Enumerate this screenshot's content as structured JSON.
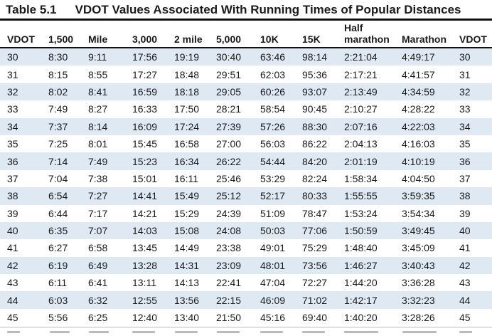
{
  "table": {
    "number": "Table 5.1",
    "title": "VDOT Values Associated With Running Times of Popular Distances",
    "headers": [
      "VDOT",
      "1,500",
      "Mile",
      "3,000",
      "2 mile",
      "5,000",
      "10K",
      "15K",
      "Half marathon",
      "Marathon",
      "VDOT"
    ],
    "rows": [
      [
        "30",
        "8:30",
        "9:11",
        "17:56",
        "19:19",
        "30:40",
        "63:46",
        "98:14",
        "2:21:04",
        "4:49:17",
        "30"
      ],
      [
        "31",
        "8:15",
        "8:55",
        "17:27",
        "18:48",
        "29:51",
        "62:03",
        "95:36",
        "2:17:21",
        "4:41:57",
        "31"
      ],
      [
        "32",
        "8:02",
        "8:41",
        "16:59",
        "18:18",
        "29:05",
        "60:26",
        "93:07",
        "2:13:49",
        "4:34:59",
        "32"
      ],
      [
        "33",
        "7:49",
        "8:27",
        "16:33",
        "17:50",
        "28:21",
        "58:54",
        "90:45",
        "2:10:27",
        "4:28:22",
        "33"
      ],
      [
        "34",
        "7:37",
        "8:14",
        "16:09",
        "17:24",
        "27:39",
        "57:26",
        "88:30",
        "2:07:16",
        "4:22:03",
        "34"
      ],
      [
        "35",
        "7:25",
        "8:01",
        "15:45",
        "16:58",
        "27:00",
        "56:03",
        "86:22",
        "2:04:13",
        "4:16:03",
        "35"
      ],
      [
        "36",
        "7:14",
        "7:49",
        "15:23",
        "16:34",
        "26:22",
        "54:44",
        "84:20",
        "2:01:19",
        "4:10:19",
        "36"
      ],
      [
        "37",
        "7:04",
        "7:38",
        "15:01",
        "16:11",
        "25:46",
        "53:29",
        "82:24",
        "1:58:34",
        "4:04:50",
        "37"
      ],
      [
        "38",
        "6:54",
        "7:27",
        "14:41",
        "15:49",
        "25:12",
        "52:17",
        "80:33",
        "1:55:55",
        "3:59:35",
        "38"
      ],
      [
        "39",
        "6:44",
        "7:17",
        "14:21",
        "15:29",
        "24:39",
        "51:09",
        "78:47",
        "1:53:24",
        "3:54:34",
        "39"
      ],
      [
        "40",
        "6:35",
        "7:07",
        "14:03",
        "15:08",
        "24:08",
        "50:03",
        "77:06",
        "1:50:59",
        "3:49:45",
        "40"
      ],
      [
        "41",
        "6:27",
        "6:58",
        "13:45",
        "14:49",
        "23:38",
        "49:01",
        "75:29",
        "1:48:40",
        "3:45:09",
        "41"
      ],
      [
        "42",
        "6:19",
        "6:49",
        "13:28",
        "14:31",
        "23:09",
        "48:01",
        "73:56",
        "1:46:27",
        "3:40:43",
        "42"
      ],
      [
        "43",
        "6:11",
        "6:41",
        "13:11",
        "14:13",
        "22:41",
        "47:04",
        "72:27",
        "1:44:20",
        "3:36:28",
        "43"
      ],
      [
        "44",
        "6:03",
        "6:32",
        "12:55",
        "13:56",
        "22:15",
        "46:09",
        "71:02",
        "1:42:17",
        "3:32:23",
        "44"
      ],
      [
        "45",
        "5:56",
        "6:25",
        "12:40",
        "13:40",
        "21:50",
        "45:16",
        "69:40",
        "1:40:20",
        "3:28:26",
        "45"
      ]
    ]
  },
  "colors": {
    "row_shade": "#dfe9f4",
    "rule": "#111111"
  }
}
